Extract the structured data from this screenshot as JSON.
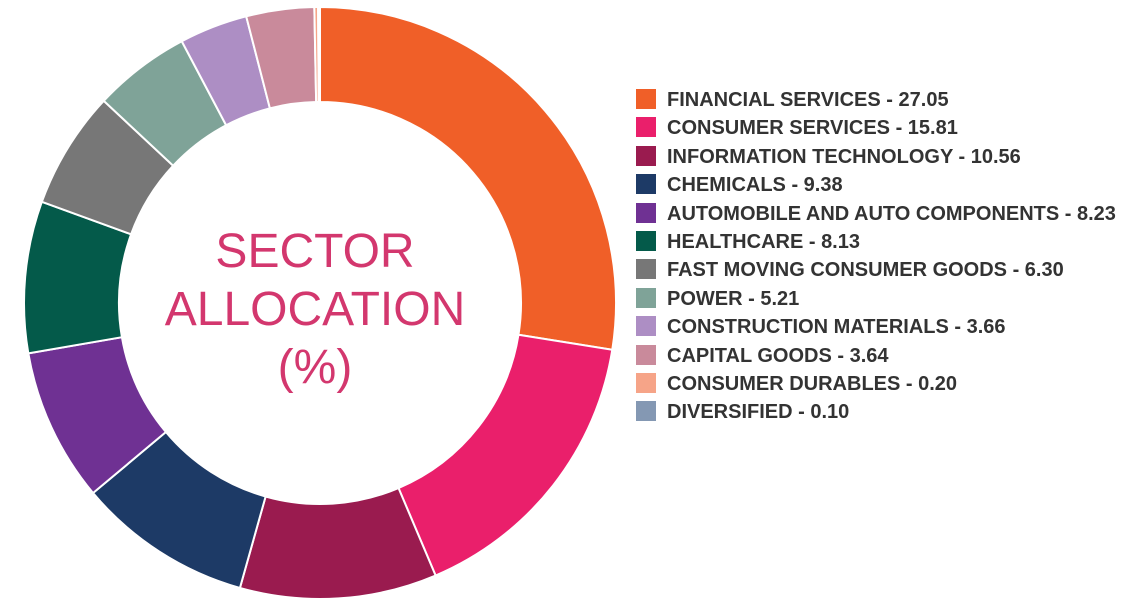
{
  "center_title": {
    "line1": "SECTOR",
    "line2": "ALLOCATION",
    "line3": "(%)"
  },
  "chart_data": {
    "type": "pie",
    "title": "SECTOR ALLOCATION (%)",
    "categories": [
      "FINANCIAL SERVICES",
      "CONSUMER SERVICES",
      "INFORMATION TECHNOLOGY",
      "CHEMICALS",
      "AUTOMOBILE AND AUTO COMPONENTS",
      "HEALTHCARE",
      "FAST MOVING CONSUMER GOODS",
      "POWER",
      "CONSTRUCTION MATERIALS",
      "CAPITAL GOODS",
      "CONSUMER DURABLES",
      "DIVERSIFIED"
    ],
    "values": [
      27.05,
      15.81,
      10.56,
      9.38,
      8.23,
      8.13,
      6.3,
      5.21,
      3.66,
      3.64,
      0.2,
      0.1
    ],
    "colors": [
      "#f05f28",
      "#ea1f6b",
      "#9a1b4f",
      "#1d3a66",
      "#6f3193",
      "#045a4a",
      "#777777",
      "#7fa398",
      "#ad8ec4",
      "#c98a9b",
      "#f6a488",
      "#8498b3"
    ],
    "legend": [
      "FINANCIAL SERVICES - 27.05",
      "CONSUMER SERVICES - 15.81",
      "INFORMATION TECHNOLOGY - 10.56",
      "CHEMICALS - 9.38",
      "AUTOMOBILE AND AUTO COMPONENTS - 8.23",
      "HEALTHCARE - 8.13",
      "FAST MOVING CONSUMER GOODS - 6.30",
      "POWER - 5.21",
      "CONSTRUCTION MATERIALS - 3.66",
      "CAPITAL GOODS - 3.64",
      "CONSUMER DURABLES - 0.20",
      "DIVERSIFIED - 0.10"
    ],
    "legend_position": "right",
    "donut": true
  }
}
